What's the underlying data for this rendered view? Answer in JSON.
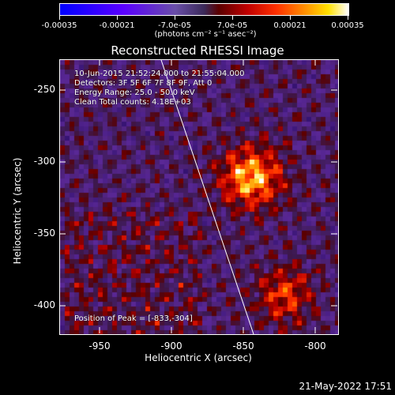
{
  "colorbar": {
    "ticks": [
      "-0.00035",
      "-0.00021",
      "-7.0e-05",
      "7.0e-05",
      "0.00021",
      "0.00035"
    ],
    "units": "(photons cm⁻² s⁻¹ asec⁻²)"
  },
  "image": {
    "title": "Reconstructed RHESSI Image",
    "time_range": "10-Jun-2015 21:52:24.000 to 21:55:04.000",
    "detectors": "Detectors: 3F 5F 6F 7F 8F 9F, Att 0",
    "energy_range": "Energy Range: 25.0 - 50.0 keV",
    "clean_counts": "Clean    Total counts: 4.18E+03",
    "peak": "Position of Peak = [-833,-304]",
    "timestamp": "21-May-2022 17:51"
  },
  "axes": {
    "xlabel": "Heliocentric X (arcsec)",
    "ylabel": "Heliocentric Y (arcsec)",
    "xticks": [
      "-950",
      "-900",
      "-850",
      "-800"
    ],
    "yticks": [
      "-250",
      "-300",
      "-350",
      "-400"
    ]
  },
  "colors": {
    "background": "#000000",
    "foreground": "#ffffff"
  }
}
